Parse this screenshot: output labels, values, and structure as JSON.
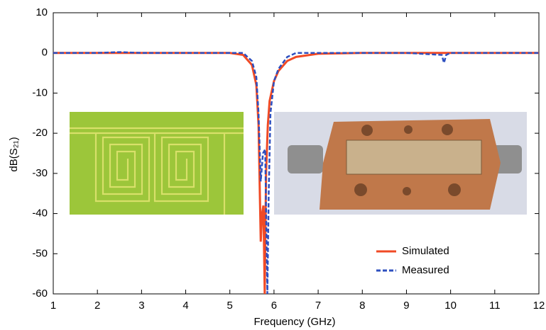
{
  "chart_data": {
    "type": "line",
    "x_label": "Frequency (GHz)",
    "y_label": "dB(S₂₁)",
    "xlim": [
      1,
      12
    ],
    "xticks": [
      1,
      2,
      3,
      4,
      5,
      6,
      7,
      8,
      9,
      10,
      11,
      12
    ],
    "ylim": [
      -60,
      10
    ],
    "yticks": [
      -60,
      -50,
      -40,
      -30,
      -20,
      -10,
      0,
      10
    ],
    "legend": "lower right",
    "series": [
      {
        "name": "Simulated",
        "color": "#f04a25",
        "dash": false,
        "x": [
          1,
          2,
          3,
          4,
          5,
          5.3,
          5.5,
          5.6,
          5.65,
          5.7,
          5.73,
          5.76,
          5.79,
          5.82,
          5.86,
          5.9,
          6.0,
          6.1,
          6.3,
          6.5,
          7,
          8,
          9,
          10,
          11,
          12
        ],
        "values": [
          0,
          0,
          0,
          0,
          0,
          -0.5,
          -3,
          -8,
          -18,
          -47,
          -40,
          -38,
          -60,
          -30,
          -18,
          -12,
          -7,
          -4.5,
          -2,
          -1,
          -0.2,
          0,
          0,
          0,
          0,
          0
        ]
      },
      {
        "name": "Measured",
        "color": "#2d4fbf",
        "dash": true,
        "x": [
          1,
          2,
          2.5,
          3,
          4,
          5,
          5.3,
          5.5,
          5.6,
          5.65,
          5.7,
          5.75,
          5.8,
          5.85,
          5.88,
          5.92,
          6.0,
          6.1,
          6.3,
          6.5,
          7,
          8,
          9,
          9.8,
          9.85,
          9.9,
          10,
          11,
          12
        ],
        "values": [
          0,
          0,
          0.2,
          0,
          0,
          0,
          0,
          -2,
          -6,
          -15,
          -32,
          -25,
          -24,
          -60,
          -35,
          -15,
          -7,
          -4,
          -1,
          0,
          0,
          0,
          0,
          -0.5,
          -2.5,
          -0.5,
          0,
          0,
          0
        ]
      }
    ]
  }
}
